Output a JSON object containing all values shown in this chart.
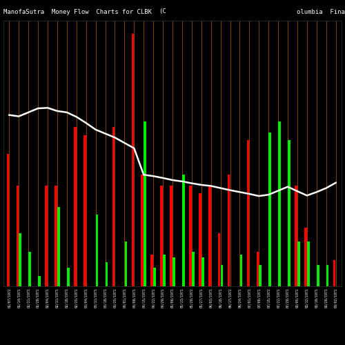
{
  "title_left": "ManofaSutra  Money Flow  Charts for CLBK",
  "title_mid": "(C",
  "title_right": "olumbia  Fina",
  "background_color": "#000000",
  "bar_line_color": "#8B4000",
  "white_line_color": "#ffffff",
  "bar_colors_red": "#ff0000",
  "bar_colors_green": "#00ee00",
  "bar_pairs": [
    {
      "red": 0.5,
      "green": 0.0
    },
    {
      "red": 0.38,
      "green": 0.2
    },
    {
      "red": 0.0,
      "green": 0.13
    },
    {
      "red": 0.0,
      "green": 0.04
    },
    {
      "red": 0.38,
      "green": 0.0
    },
    {
      "red": 0.38,
      "green": 0.3
    },
    {
      "red": 0.0,
      "green": 0.07
    },
    {
      "red": 0.6,
      "green": 0.0
    },
    {
      "red": 0.57,
      "green": 0.0
    },
    {
      "red": 0.0,
      "green": 0.27
    },
    {
      "red": 0.0,
      "green": 0.09
    },
    {
      "red": 0.6,
      "green": 0.0
    },
    {
      "red": 0.0,
      "green": 0.17
    },
    {
      "red": 0.95,
      "green": 0.0
    },
    {
      "red": 0.42,
      "green": 0.62
    },
    {
      "red": 0.12,
      "green": 0.07
    },
    {
      "red": 0.38,
      "green": 0.12
    },
    {
      "red": 0.38,
      "green": 0.11
    },
    {
      "red": 0.0,
      "green": 0.42
    },
    {
      "red": 0.38,
      "green": 0.13
    },
    {
      "red": 0.35,
      "green": 0.11
    },
    {
      "red": 0.38,
      "green": 0.0
    },
    {
      "red": 0.2,
      "green": 0.08
    },
    {
      "red": 0.42,
      "green": 0.0
    },
    {
      "red": 0.0,
      "green": 0.12
    },
    {
      "red": 0.55,
      "green": 0.0
    },
    {
      "red": 0.13,
      "green": 0.08
    },
    {
      "red": 0.0,
      "green": 0.58
    },
    {
      "red": 0.0,
      "green": 0.62
    },
    {
      "red": 0.0,
      "green": 0.55
    },
    {
      "red": 0.38,
      "green": 0.17
    },
    {
      "red": 0.22,
      "green": 0.17
    },
    {
      "red": 0.0,
      "green": 0.08
    },
    {
      "red": 0.0,
      "green": 0.08
    },
    {
      "red": 0.1,
      "green": 0.0
    }
  ],
  "white_line": [
    0.645,
    0.64,
    0.655,
    0.67,
    0.672,
    0.66,
    0.655,
    0.638,
    0.615,
    0.59,
    0.575,
    0.56,
    0.54,
    0.52,
    0.42,
    0.415,
    0.408,
    0.4,
    0.395,
    0.388,
    0.382,
    0.378,
    0.37,
    0.362,
    0.355,
    0.348,
    0.34,
    0.345,
    0.36,
    0.375,
    0.358,
    0.342,
    0.355,
    0.37,
    0.39
  ],
  "dates": [
    "01/07/1971",
    "01/14/1971",
    "01/21/1971",
    "01/28/1971",
    "02/04/1971",
    "02/11/1971",
    "02/18/1971",
    "02/25/1971",
    "03/04/1971",
    "03/11/1971",
    "03/18/1971",
    "03/25/1971",
    "04/01/1971",
    "04/08/1971",
    "04/15/1971",
    "04/22/1971",
    "04/29/1971",
    "05/06/1971",
    "05/13/1971",
    "05/20/1971",
    "05/27/1971",
    "06/03/1971",
    "06/10/1971",
    "06/17/1971",
    "06/24/1971",
    "07/01/1971",
    "07/08/1971",
    "07/15/1971",
    "07/22/1971",
    "07/29/1971",
    "08/05/1971",
    "08/12/1971",
    "08/19/1971",
    "08/26/1971",
    "09/02/1971"
  ],
  "figsize": [
    5.0,
    5.0
  ],
  "dpi": 100,
  "ylim": [
    0.0,
    1.0
  ],
  "bar_width": 0.28,
  "title_fontsize": 6.5,
  "tick_fontsize": 3.5
}
